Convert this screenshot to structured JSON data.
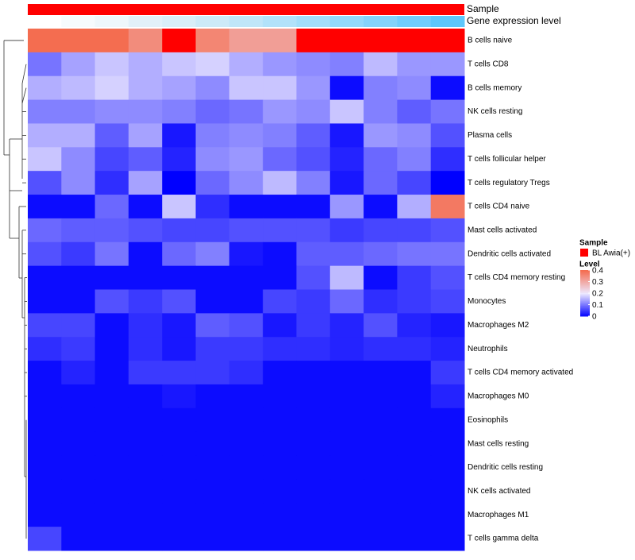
{
  "chart_data": {
    "type": "heatmap",
    "annotation_tracks": [
      {
        "label": "Sample",
        "color": "#ff0000"
      },
      {
        "label": "Gene expression level",
        "colors": [
          "#ffffff",
          "#f6fbfd",
          "#eef7fb",
          "#e2f1f9",
          "#d9eef8",
          "#cdeaf8",
          "#c0e6f9",
          "#b2e2fa",
          "#a3defa",
          "#93d9fb",
          "#84d3fb",
          "#72cdfc",
          "#5ec7fb"
        ]
      }
    ],
    "rows": [
      "B cells naive",
      "T cells CD8",
      "B cells memory",
      "NK cells resting",
      "Plasma cells",
      "T cells follicular helper",
      "T cells regulatory  Tregs",
      "T cells CD4 naive",
      "Mast cells activated",
      "Dendritic cells activated",
      "T cells CD4 memory resting",
      "Monocytes",
      "Macrophages M2",
      "Neutrophils",
      "T cells CD4 memory activated",
      "Macrophages M0",
      "Eosinophils",
      "Mast cells resting",
      "Dendritic cells resting",
      "NK cells activated",
      "Macrophages M1",
      "T cells gamma delta"
    ],
    "n_columns": 13,
    "values": [
      [
        0.4,
        0.4,
        0.4,
        0.35,
        0.45,
        0.36,
        0.32,
        0.32,
        0.45,
        0.45,
        0.42,
        0.43,
        0.44
      ],
      [
        0.1,
        0.14,
        0.17,
        0.15,
        0.17,
        0.18,
        0.15,
        0.13,
        0.12,
        0.11,
        0.16,
        0.13,
        0.13
      ],
      [
        0.15,
        0.16,
        0.18,
        0.15,
        0.14,
        0.12,
        0.17,
        0.17,
        0.13,
        0.01,
        0.11,
        0.12,
        0.01
      ],
      [
        0.11,
        0.11,
        0.12,
        0.12,
        0.11,
        0.09,
        0.1,
        0.13,
        0.12,
        0.17,
        0.11,
        0.08,
        0.1
      ],
      [
        0.15,
        0.15,
        0.08,
        0.14,
        0.02,
        0.11,
        0.12,
        0.11,
        0.08,
        0.02,
        0.13,
        0.12,
        0.07
      ],
      [
        0.17,
        0.12,
        0.06,
        0.08,
        0.03,
        0.12,
        0.13,
        0.09,
        0.07,
        0.03,
        0.09,
        0.11,
        0.04
      ],
      [
        0.07,
        0.12,
        0.04,
        0.14,
        0.0,
        0.09,
        0.12,
        0.16,
        0.11,
        0.02,
        0.09,
        0.06,
        0.0
      ],
      [
        0.01,
        0.01,
        0.09,
        0.01,
        0.17,
        0.04,
        0.01,
        0.01,
        0.01,
        0.13,
        0.01,
        0.15,
        0.38
      ],
      [
        0.09,
        0.08,
        0.08,
        0.07,
        0.06,
        0.06,
        0.07,
        0.07,
        0.07,
        0.05,
        0.06,
        0.06,
        0.07
      ],
      [
        0.07,
        0.05,
        0.1,
        0.01,
        0.09,
        0.11,
        0.02,
        0.01,
        0.08,
        0.08,
        0.09,
        0.1,
        0.1
      ],
      [
        0.01,
        0.01,
        0.01,
        0.01,
        0.01,
        0.01,
        0.01,
        0.01,
        0.07,
        0.16,
        0.01,
        0.05,
        0.07
      ],
      [
        0.01,
        0.01,
        0.07,
        0.05,
        0.07,
        0.01,
        0.01,
        0.06,
        0.05,
        0.09,
        0.04,
        0.05,
        0.06
      ],
      [
        0.06,
        0.06,
        0.01,
        0.04,
        0.02,
        0.08,
        0.07,
        0.02,
        0.05,
        0.03,
        0.07,
        0.03,
        0.02
      ],
      [
        0.04,
        0.05,
        0.01,
        0.04,
        0.02,
        0.05,
        0.05,
        0.04,
        0.04,
        0.03,
        0.04,
        0.04,
        0.03
      ],
      [
        0.01,
        0.03,
        0.01,
        0.05,
        0.05,
        0.05,
        0.04,
        0.01,
        0.01,
        0.01,
        0.01,
        0.01,
        0.05
      ],
      [
        0.01,
        0.01,
        0.01,
        0.01,
        0.02,
        0.01,
        0.01,
        0.01,
        0.01,
        0.01,
        0.01,
        0.01,
        0.03
      ],
      [
        0.01,
        0.01,
        0.01,
        0.01,
        0.01,
        0.01,
        0.01,
        0.01,
        0.01,
        0.01,
        0.01,
        0.01,
        0.01
      ],
      [
        0.01,
        0.01,
        0.01,
        0.01,
        0.01,
        0.01,
        0.01,
        0.01,
        0.01,
        0.01,
        0.01,
        0.01,
        0.01
      ],
      [
        0.01,
        0.01,
        0.01,
        0.01,
        0.01,
        0.01,
        0.01,
        0.01,
        0.01,
        0.01,
        0.01,
        0.01,
        0.01
      ],
      [
        0.01,
        0.01,
        0.01,
        0.01,
        0.01,
        0.01,
        0.01,
        0.01,
        0.01,
        0.01,
        0.01,
        0.01,
        0.01
      ],
      [
        0.01,
        0.01,
        0.01,
        0.01,
        0.01,
        0.01,
        0.01,
        0.01,
        0.01,
        0.01,
        0.01,
        0.01,
        0.01
      ],
      [
        0.06,
        0.01,
        0.01,
        0.01,
        0.01,
        0.01,
        0.01,
        0.01,
        0.01,
        0.01,
        0.01,
        0.01,
        0.01
      ]
    ],
    "color_scale": {
      "min": 0,
      "max": 0.4,
      "stops": [
        {
          "value": 0.0,
          "color": "#0000ff"
        },
        {
          "value": 0.2,
          "color": "#ede8ff"
        },
        {
          "value": 0.4,
          "color": "#f46d50"
        }
      ],
      "overflow_color": "#ff0000"
    },
    "row_dendrogram": true,
    "legend": {
      "placement": "right",
      "sample_title": "Sample",
      "sample_entry": "BL Awia(+)",
      "sample_color": "#ff0000",
      "level_title": "Level",
      "ticks": [
        "0.4",
        "0.3",
        "0.2",
        "0.1",
        "0"
      ],
      "tick_values": [
        0.4,
        0.3,
        0.2,
        0.1,
        0
      ]
    }
  }
}
